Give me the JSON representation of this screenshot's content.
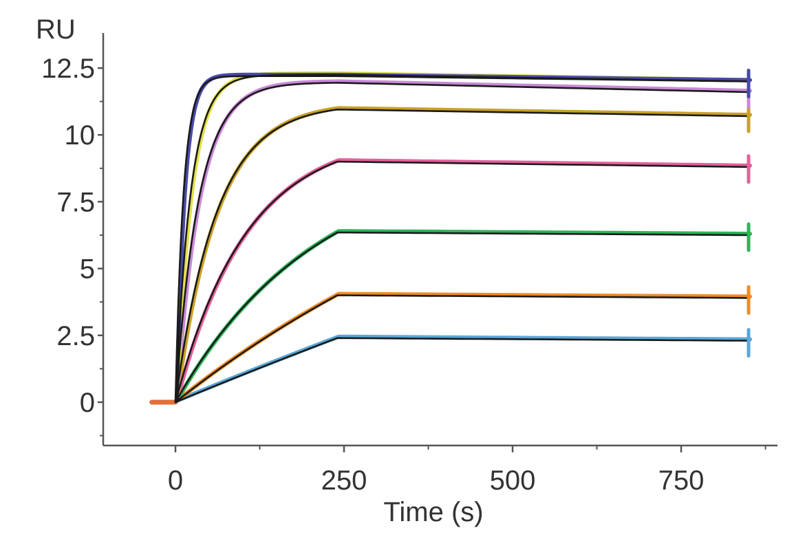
{
  "chart_data": {
    "type": "line",
    "title": "",
    "xlabel": "Time (s)",
    "ylabel": "RU",
    "xlim": [
      -110,
      880
    ],
    "ylim": [
      -1.4,
      13.6
    ],
    "xticks": [
      0,
      250,
      500,
      750
    ],
    "xtick_labels": [
      "0",
      "250",
      "500",
      "750"
    ],
    "xminor_ticks": [
      125,
      375,
      625,
      875
    ],
    "yticks": [
      0,
      2.5,
      5,
      7.5,
      10,
      12.5
    ],
    "ytick_labels": [
      "0",
      "2.5",
      "5",
      "7.5",
      "10",
      "12.5"
    ],
    "grid": false,
    "legend": "none",
    "baseline": {
      "x": [
        -35,
        0
      ],
      "y": 0,
      "color": "#e0703a"
    },
    "fit_color": "#1a1a1a",
    "injection_start": 0,
    "injection_end": 240,
    "x_end": 850,
    "series": [
      {
        "color": "#5ba7d8",
        "kobs": 0.0004,
        "plateau": 2.4,
        "final": 2.3
      },
      {
        "color": "#f08a24",
        "kobs": 0.0016,
        "plateau": 4.0,
        "final": 3.9
      },
      {
        "color": "#2fb35a",
        "kobs": 0.0048,
        "plateau": 6.35,
        "final": 6.25
      },
      {
        "color": "#e5609a",
        "kobs": 0.0095,
        "plateau": 9.0,
        "final": 8.8
      },
      {
        "color": "#c9a227",
        "kobs": 0.0165,
        "plateau": 10.95,
        "final": 10.7
      },
      {
        "color": "#c98ad8",
        "kobs": 0.029,
        "plateau": 11.95,
        "final": 11.6
      },
      {
        "color": "#e3e04a",
        "kobs": 0.045,
        "plateau": 12.25,
        "final": 12.0
      },
      {
        "color": "#4a4aa8",
        "kobs": 0.085,
        "plateau": 12.2,
        "final": 12.0
      }
    ]
  }
}
